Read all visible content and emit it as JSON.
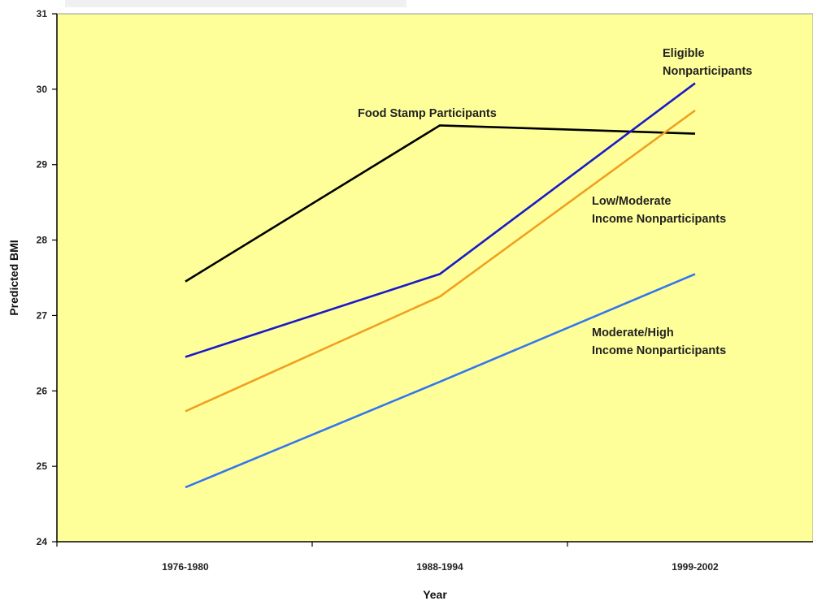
{
  "chart_data": {
    "type": "line",
    "xlabel": "Year",
    "ylabel": "Predicted BMI",
    "categories": [
      "1976-1980",
      "1988-1994",
      "1999-2002"
    ],
    "ylim": [
      24,
      31
    ],
    "yticks": [
      24,
      25,
      26,
      27,
      28,
      29,
      30,
      31
    ],
    "grid": false,
    "legend": "none",
    "plot_background": "#FFFF99",
    "series": [
      {
        "name": "Food Stamp Participants",
        "values": [
          27.45,
          29.52,
          29.41
        ],
        "color": "#000000"
      },
      {
        "name": "Eligible Nonparticipants",
        "values": [
          26.45,
          27.55,
          30.08
        ],
        "color": "#1A1AC8"
      },
      {
        "name": "Low/Moderate Income Nonparticipants",
        "values": [
          25.73,
          27.25,
          29.72
        ],
        "color": "#F0A020"
      },
      {
        "name": "Moderate/High Income Nonparticipants",
        "values": [
          24.72,
          26.12,
          27.55
        ],
        "color": "#3377EE"
      }
    ]
  }
}
